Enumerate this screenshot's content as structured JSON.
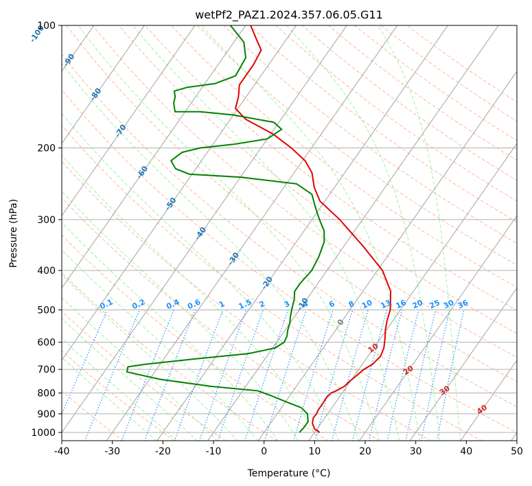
{
  "chart_data": {
    "type": "line",
    "title": "wetPf2_PAZ1.2024.357.06.05.G11",
    "xlabel": "Temperature (°C)",
    "ylabel": "Pressure (hPa)",
    "xlim": [
      -40,
      50
    ],
    "ylim": [
      1050,
      100
    ],
    "y_scale": "log",
    "x_ticks": [
      -40,
      -30,
      -20,
      -10,
      0,
      10,
      20,
      30,
      40,
      50
    ],
    "y_ticks": [
      100,
      200,
      300,
      400,
      500,
      600,
      700,
      800,
      900,
      1000
    ],
    "grid": true,
    "colors": {
      "temperature": "#e00000",
      "dewpoint": "#008000",
      "isotherm": "#999999",
      "dry_adiabat": "#ffa07a",
      "moist_adiabat": "#90ee90",
      "mixing_ratio": "#1e90ff",
      "isotherm_label": "#1f77b4",
      "dry_adiabat_label": "#d62728",
      "zero_label": "#808080"
    },
    "series": [
      {
        "key": "temperature",
        "color": "#e00000",
        "points": [
          [
            1000,
            11.0
          ],
          [
            980,
            9.5
          ],
          [
            950,
            8.3
          ],
          [
            920,
            7.7
          ],
          [
            900,
            7.8
          ],
          [
            880,
            7.6
          ],
          [
            850,
            7.6
          ],
          [
            820,
            7.5
          ],
          [
            800,
            7.8
          ],
          [
            790,
            8.5
          ],
          [
            770,
            9.5
          ],
          [
            750,
            9.8
          ],
          [
            730,
            10.3
          ],
          [
            700,
            11.0
          ],
          [
            680,
            12.0
          ],
          [
            650,
            12.5
          ],
          [
            620,
            12.0
          ],
          [
            590,
            11.0
          ],
          [
            560,
            9.8
          ],
          [
            530,
            8.8
          ],
          [
            500,
            8.0
          ],
          [
            450,
            5.5
          ],
          [
            400,
            1.0
          ],
          [
            350,
            -6.0
          ],
          [
            300,
            -14.5
          ],
          [
            270,
            -21.0
          ],
          [
            250,
            -24.0
          ],
          [
            230,
            -26.5
          ],
          [
            215,
            -29.5
          ],
          [
            200,
            -34.0
          ],
          [
            185,
            -39.5
          ],
          [
            170,
            -47.0
          ],
          [
            160,
            -50.5
          ],
          [
            150,
            -51.5
          ],
          [
            140,
            -53.0
          ],
          [
            125,
            -53.0
          ],
          [
            115,
            -53.5
          ],
          [
            108,
            -56.0
          ],
          [
            100,
            -59.0
          ]
        ]
      },
      {
        "key": "dewpoint",
        "color": "#008000",
        "points": [
          [
            1000,
            7.0
          ],
          [
            970,
            7.2
          ],
          [
            940,
            7.2
          ],
          [
            900,
            6.0
          ],
          [
            870,
            4.0
          ],
          [
            840,
            0.0
          ],
          [
            810,
            -4.0
          ],
          [
            790,
            -7.0
          ],
          [
            770,
            -17.0
          ],
          [
            740,
            -28.0
          ],
          [
            710,
            -35.5
          ],
          [
            690,
            -36.0
          ],
          [
            680,
            -33.0
          ],
          [
            660,
            -24.0
          ],
          [
            640,
            -14.0
          ],
          [
            620,
            -9.5
          ],
          [
            600,
            -8.5
          ],
          [
            580,
            -8.8
          ],
          [
            560,
            -9.5
          ],
          [
            540,
            -10.0
          ],
          [
            520,
            -10.8
          ],
          [
            500,
            -11.5
          ],
          [
            470,
            -12.5
          ],
          [
            450,
            -13.5
          ],
          [
            430,
            -13.5
          ],
          [
            400,
            -13.0
          ],
          [
            370,
            -13.5
          ],
          [
            340,
            -14.5
          ],
          [
            320,
            -16.0
          ],
          [
            300,
            -18.5
          ],
          [
            280,
            -21.0
          ],
          [
            260,
            -23.5
          ],
          [
            245,
            -28.0
          ],
          [
            236,
            -40.0
          ],
          [
            232,
            -50.5
          ],
          [
            225,
            -54.0
          ],
          [
            215,
            -56.0
          ],
          [
            205,
            -55.0
          ],
          [
            200,
            -52.0
          ],
          [
            196,
            -46.0
          ],
          [
            190,
            -40.0
          ],
          [
            180,
            -38.5
          ],
          [
            173,
            -41.0
          ],
          [
            166,
            -50.0
          ],
          [
            163,
            -57.0
          ],
          [
            163,
            -62.0
          ],
          [
            155,
            -63.5
          ],
          [
            150,
            -64.0
          ],
          [
            145,
            -65.0
          ],
          [
            142,
            -63.0
          ],
          [
            139,
            -58.0
          ],
          [
            133,
            -55.0
          ],
          [
            120,
            -55.5
          ],
          [
            110,
            -58.0
          ],
          [
            100,
            -63.0
          ]
        ]
      }
    ],
    "isotherm_labels": [
      "-100",
      "-90",
      "-80",
      "-70",
      "-60",
      "-50",
      "-40",
      "-30",
      "-20",
      "-10",
      "0",
      "10",
      "20",
      "30",
      "40"
    ],
    "mixing_ratio_labels": [
      "0.1",
      "0.2",
      "0.4",
      "0.6",
      "1",
      "1.5",
      "2",
      "3",
      "4",
      "6",
      "8",
      "10",
      "13",
      "16",
      "20",
      "25",
      "30",
      "36"
    ]
  }
}
